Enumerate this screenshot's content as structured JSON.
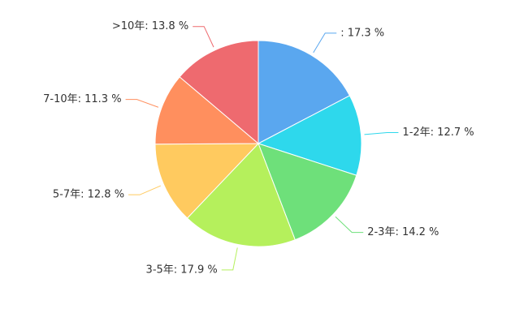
{
  "chart_data": {
    "type": "pie",
    "values": [
      17.3,
      12.7,
      14.2,
      17.9,
      12.8,
      11.3,
      13.8
    ],
    "value_labels": [
      ": 17.3 %",
      "1-2年: 12.7 %",
      "2-3年: 14.2 %",
      "3-5年: 17.9 %",
      "5-7年: 12.8 %",
      "7-10年: 11.3 %",
      ">10年: 13.8 %"
    ],
    "colors": [
      "#5aa7ef",
      "#2ed8ec",
      "#6ee07a",
      "#b5f05c",
      "#ffca5f",
      "#ff8f5e",
      "#ee6a6f"
    ]
  }
}
